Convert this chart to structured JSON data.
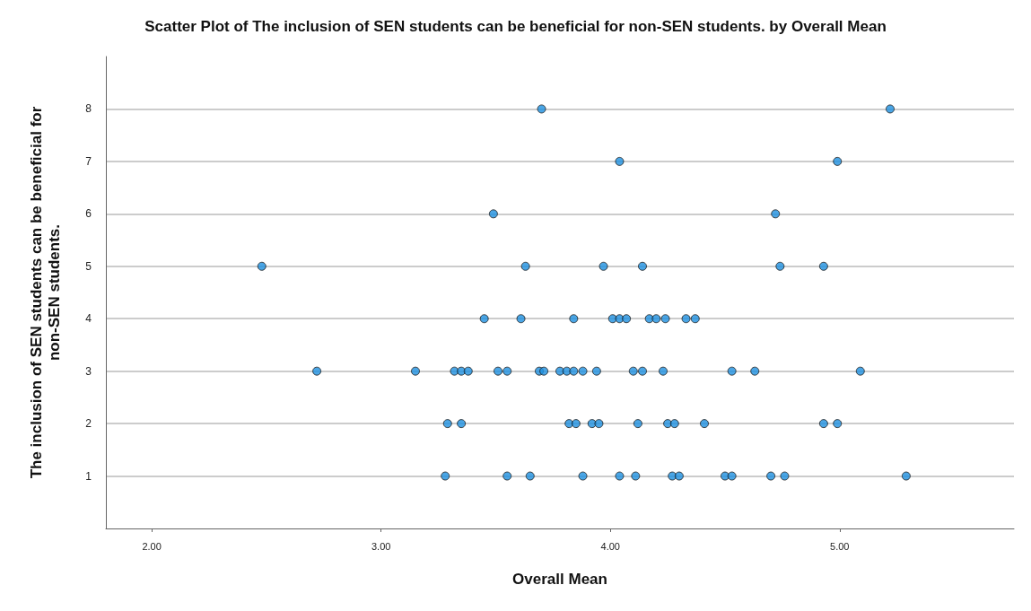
{
  "chart_data": {
    "type": "scatter",
    "title": "Scatter Plot of The inclusion of SEN students can be beneficial for non-SEN students. by Overall Mean",
    "xlabel": "Overall Mean",
    "ylabel": "The inclusion of SEN students can be beneficial for non-SEN students.",
    "x": [
      3.28,
      3.55,
      3.65,
      3.88,
      4.04,
      4.11,
      4.27,
      4.3,
      4.5,
      4.53,
      4.7,
      4.76,
      5.29,
      3.29,
      3.35,
      3.82,
      3.85,
      3.92,
      3.95,
      4.12,
      4.25,
      4.28,
      4.41,
      4.93,
      4.99,
      2.72,
      3.15,
      3.32,
      3.35,
      3.38,
      3.51,
      3.55,
      3.69,
      3.71,
      3.78,
      3.81,
      3.84,
      3.88,
      3.94,
      4.1,
      4.14,
      4.23,
      4.53,
      4.63,
      5.09,
      3.45,
      3.61,
      3.84,
      4.01,
      4.04,
      4.07,
      4.17,
      4.2,
      4.24,
      4.33,
      4.37,
      2.48,
      3.63,
      3.97,
      4.14,
      4.74,
      4.93,
      3.49,
      4.72,
      4.04,
      4.99,
      3.7,
      5.22
    ],
    "values": [
      1,
      1,
      1,
      1,
      1,
      1,
      1,
      1,
      1,
      1,
      1,
      1,
      1,
      2,
      2,
      2,
      2,
      2,
      2,
      2,
      2,
      2,
      2,
      2,
      2,
      3,
      3,
      3,
      3,
      3,
      3,
      3,
      3,
      3,
      3,
      3,
      3,
      3,
      3,
      3,
      3,
      3,
      3,
      3,
      3,
      4,
      4,
      4,
      4,
      4,
      4,
      4,
      4,
      4,
      4,
      4,
      5,
      5,
      5,
      5,
      5,
      5,
      6,
      6,
      7,
      7,
      8,
      8
    ],
    "color": "#1e90e0",
    "marker": "circle",
    "xlim": [
      1.8,
      5.76
    ],
    "xticks": [
      {
        "value": 2,
        "label": "2.00"
      },
      {
        "value": 3,
        "label": "3.00"
      },
      {
        "value": 4,
        "label": "4.00"
      },
      {
        "value": 5,
        "label": "5.00"
      }
    ],
    "ylim": [
      0,
      9
    ],
    "yticks": [
      1,
      2,
      3,
      4,
      5,
      6,
      7,
      8
    ],
    "grid": "y"
  }
}
